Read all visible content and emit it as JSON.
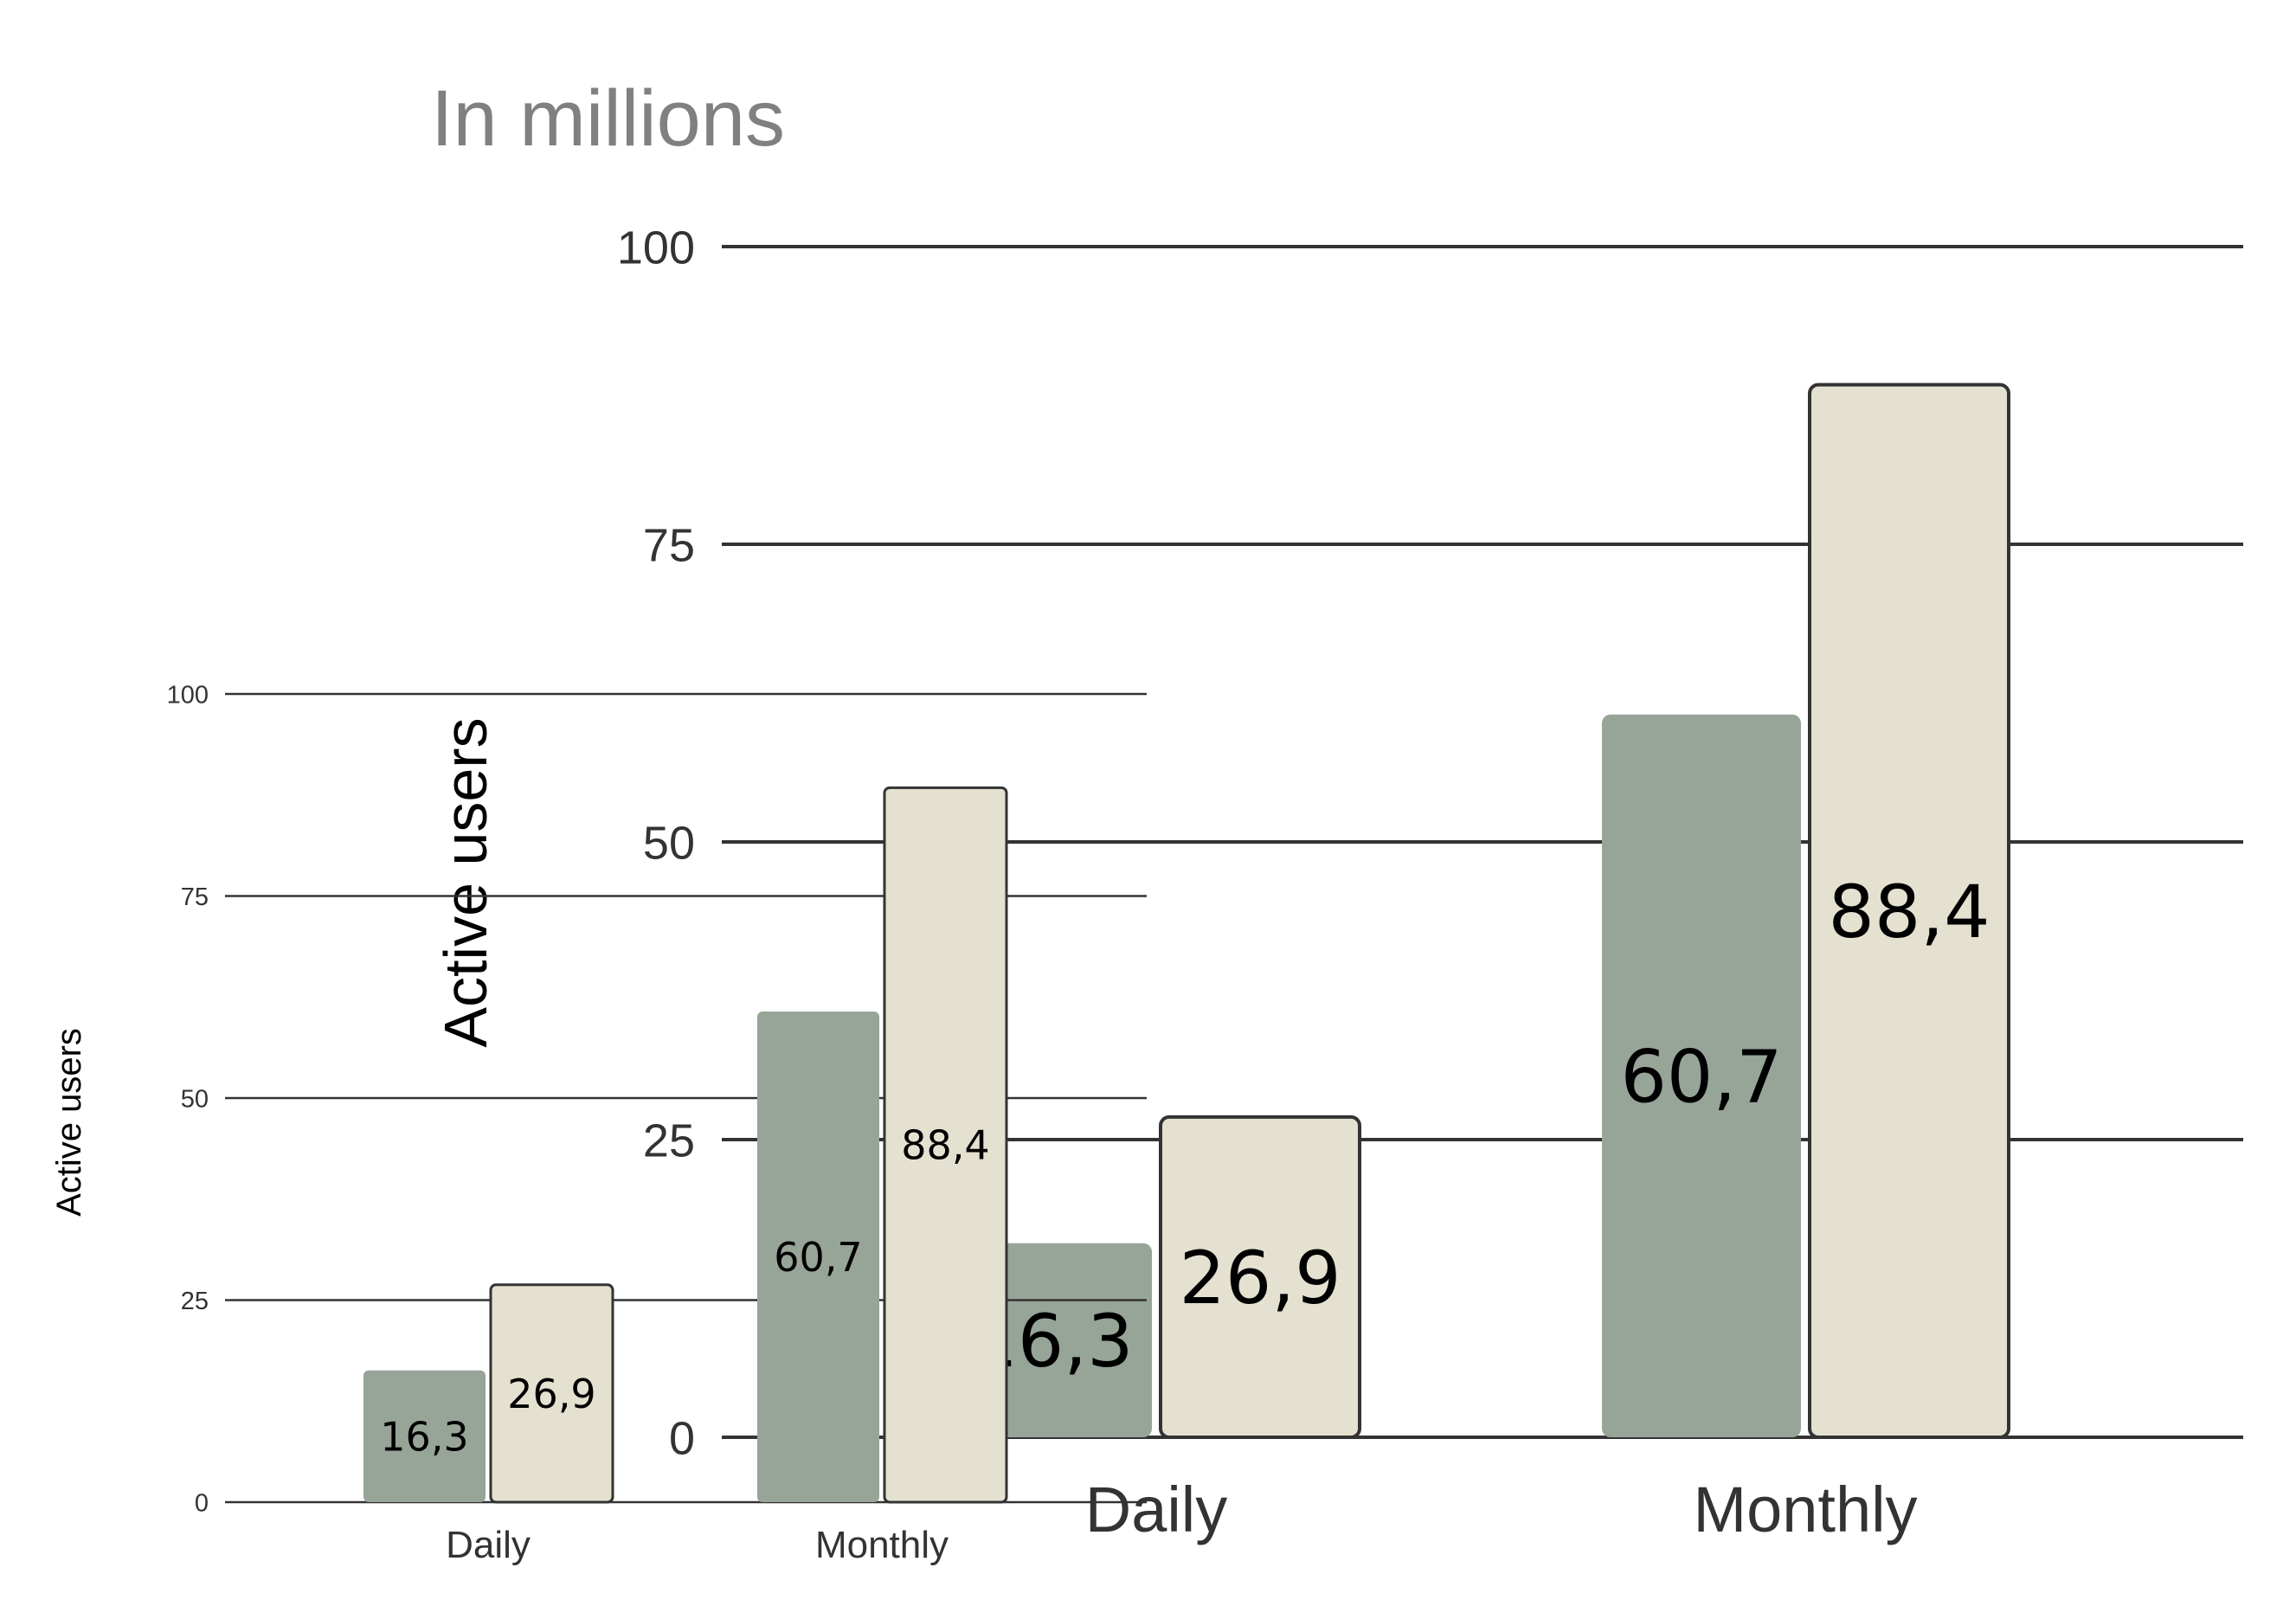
{
  "title": "In millions",
  "colors": {
    "series1": "#97a498",
    "series2": "#e4e1d0",
    "grid": "#333333",
    "bar_outline": "#333333"
  },
  "chart_data": [
    {
      "type": "bar",
      "categories": [
        "Daily",
        "Monthly"
      ],
      "series": [
        {
          "values": [
            16.3,
            60.7
          ],
          "labels": [
            "16,3",
            "60,7"
          ],
          "color": "#97a498"
        },
        {
          "values": [
            26.9,
            88.4
          ],
          "labels": [
            "26,9",
            "88,4"
          ],
          "color": "#e4e1d0"
        }
      ],
      "title": "In millions",
      "ylabel": "Active users",
      "ylim": [
        0,
        100
      ],
      "yticks": [
        "0",
        "25",
        "50",
        "75",
        "100"
      ],
      "grid": true,
      "legend": "none"
    },
    {
      "type": "bar",
      "categories": [
        "Daily",
        "Monthly"
      ],
      "series": [
        {
          "values": [
            16.3,
            60.7
          ],
          "labels": [
            "16,3",
            "60,7"
          ],
          "color": "#97a498"
        },
        {
          "values": [
            26.9,
            88.4
          ],
          "labels": [
            "26,9",
            "88,4"
          ],
          "color": "#e4e1d0"
        }
      ],
      "ylabel": "Active users",
      "ylim": [
        0,
        100
      ],
      "yticks": [
        "0",
        "25",
        "50",
        "75",
        "100"
      ],
      "grid": true,
      "legend": "none"
    }
  ]
}
